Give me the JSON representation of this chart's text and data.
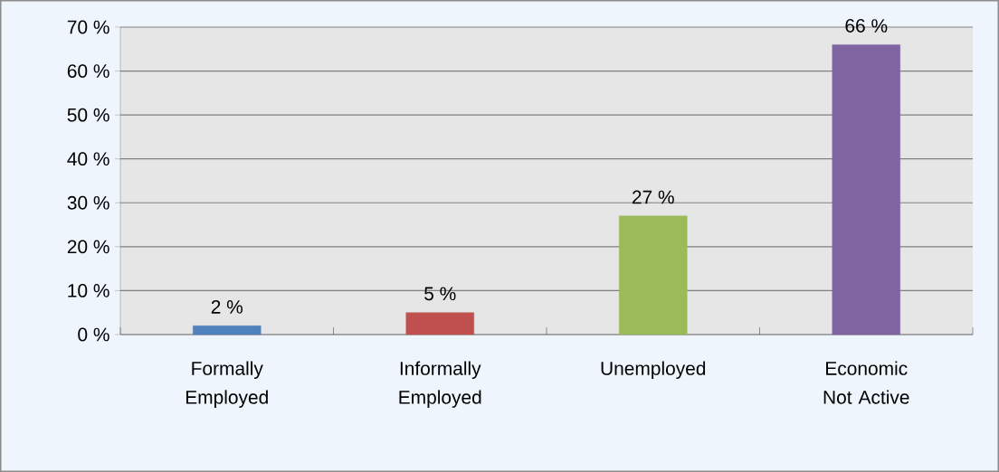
{
  "chart_data": {
    "type": "bar",
    "categories": [
      "Formally Employed",
      "Informally Employed",
      "Unemployed",
      "Economic Not Active"
    ],
    "values": [
      2,
      5,
      27,
      66
    ],
    "colors": [
      "#4f81bd",
      "#c0504d",
      "#9bbb59",
      "#8064a2"
    ],
    "value_labels": [
      "2 %",
      "5 %",
      "27 %",
      "66 %"
    ],
    "ylim": [
      0,
      70
    ],
    "yticks": [
      {
        "value": 0,
        "label": "0 %"
      },
      {
        "value": 10,
        "label": "10 %"
      },
      {
        "value": 20,
        "label": "20 %"
      },
      {
        "value": 30,
        "label": "30 %"
      },
      {
        "value": 40,
        "label": "40 %"
      },
      {
        "value": 50,
        "label": "50 %"
      },
      {
        "value": 60,
        "label": "60 %"
      },
      {
        "value": 70,
        "label": "70 %"
      }
    ],
    "grid": "y"
  }
}
